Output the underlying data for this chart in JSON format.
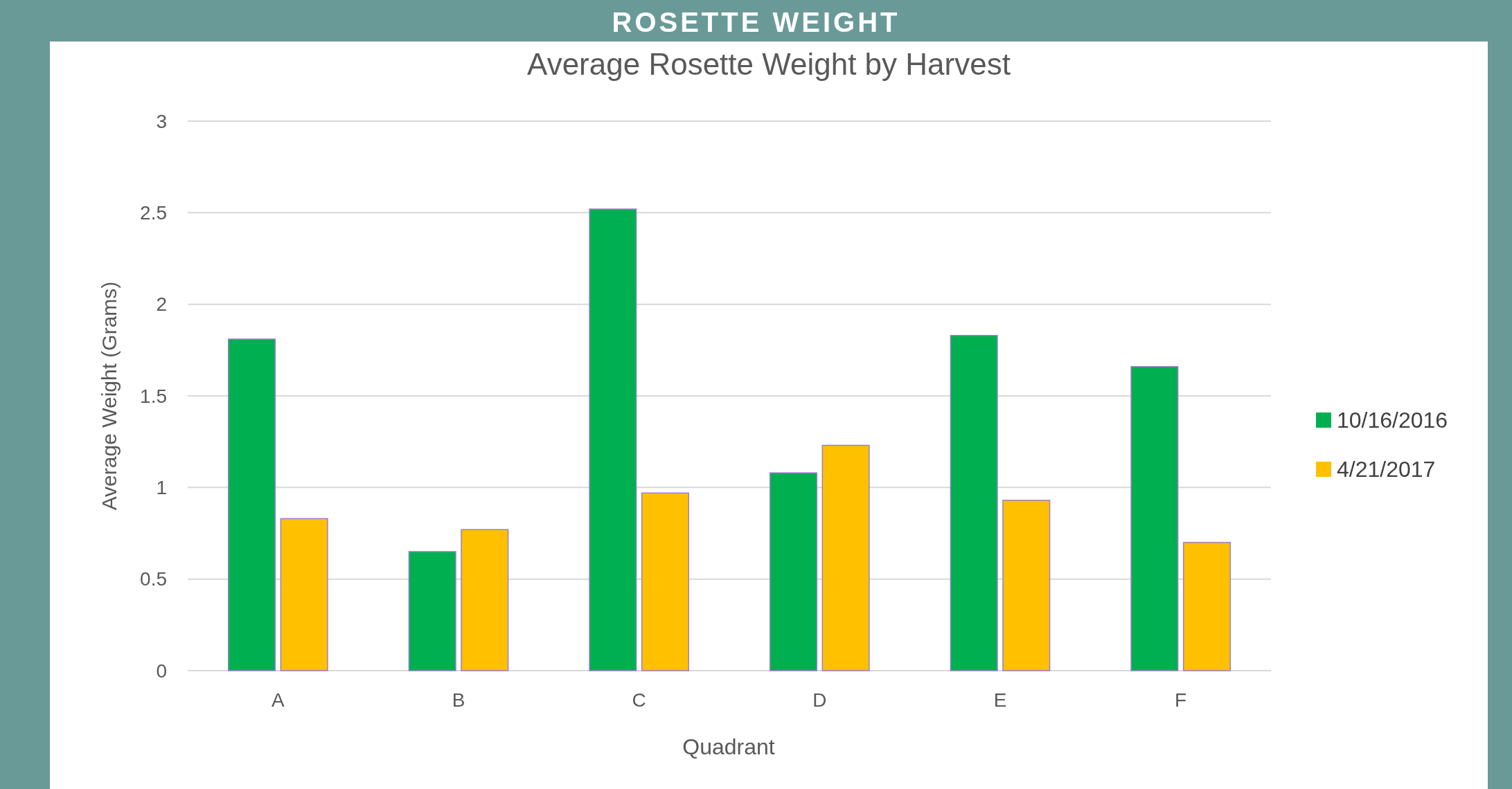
{
  "chart_data": {
    "type": "bar",
    "title": "Average Rosette Weight by Harvest",
    "subtitle": "ROSETTE WEIGHT",
    "xlabel": "Quadrant",
    "ylabel": "Average Weight (Grams)",
    "categories": [
      "A",
      "B",
      "C",
      "D",
      "E",
      "F"
    ],
    "series": [
      {
        "name": "10/16/2016",
        "color": "#00b050",
        "values": [
          1.81,
          0.65,
          2.52,
          1.08,
          1.83,
          1.66
        ]
      },
      {
        "name": "4/21/2017",
        "color": "#ffc000",
        "values": [
          0.83,
          0.77,
          0.97,
          1.23,
          0.93,
          0.7
        ]
      }
    ],
    "ylim": [
      0,
      3
    ],
    "yticks": [
      0,
      0.5,
      1,
      1.5,
      2,
      2.5,
      3
    ],
    "grid": "y",
    "legend": "right"
  }
}
